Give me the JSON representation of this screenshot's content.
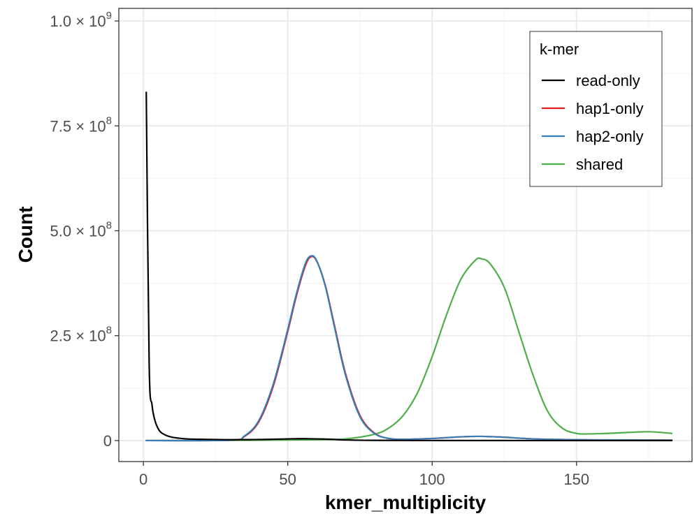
{
  "chart_data": {
    "type": "line",
    "xlabel": "kmer_multiplicity",
    "ylabel": "Count",
    "xlim": [
      -8.5,
      190
    ],
    "ylim": [
      -50000000.0,
      1030000000.0
    ],
    "x_ticks": [
      {
        "value": 0,
        "label": "0"
      },
      {
        "value": 50,
        "label": "50"
      },
      {
        "value": 100,
        "label": "100"
      },
      {
        "value": 150,
        "label": "150"
      }
    ],
    "y_ticks": [
      {
        "value": 0,
        "mantissa": "0",
        "exponent": ""
      },
      {
        "value": 250000000,
        "mantissa": "2.5 × 10",
        "exponent": "8"
      },
      {
        "value": 500000000,
        "mantissa": "5.0 × 10",
        "exponent": "8"
      },
      {
        "value": 750000000,
        "mantissa": "7.5 × 10",
        "exponent": "8"
      },
      {
        "value": 1000000000,
        "mantissa": "1.0 × 10",
        "exponent": "9"
      }
    ],
    "grid": true,
    "legend": {
      "title": "k-mer",
      "position": "top-right"
    },
    "series": [
      {
        "name": "read-only",
        "color": "#000000",
        "x": [
          1,
          2,
          3,
          4,
          5,
          6,
          8,
          10,
          12,
          15,
          20,
          25,
          30,
          40,
          50,
          55,
          60,
          65,
          70,
          80,
          100,
          120,
          140,
          160,
          183
        ],
        "y": [
          830000000,
          185000000,
          85000000,
          48000000,
          30000000,
          20000000,
          12000000,
          8000000,
          6000000,
          4000000,
          3000000,
          2500000,
          2000000,
          2500000,
          4000000,
          4500000,
          4000000,
          3000000,
          1500000,
          500000,
          200000,
          100000,
          50000,
          30000,
          20000
        ]
      },
      {
        "name": "hap1-only",
        "color": "#e41a1c",
        "x": [
          1,
          30,
          35,
          40,
          45,
          50,
          53,
          56,
          58,
          60,
          63,
          66,
          70,
          75,
          80,
          85,
          90,
          100,
          110,
          117,
          125,
          135,
          150,
          165,
          183
        ],
        "y": [
          0,
          1000000,
          10000000,
          45000000,
          130000000,
          260000000,
          345000000,
          415000000,
          438000000,
          428000000,
          370000000,
          280000000,
          160000000,
          60000000,
          18000000,
          5000000,
          3000000,
          5000000,
          9000000,
          10000000,
          8000000,
          4000000,
          2000000,
          1500000,
          1000000
        ]
      },
      {
        "name": "hap2-only",
        "color": "#377eb8",
        "x": [
          1,
          30,
          35,
          40,
          45,
          50,
          53,
          56,
          58,
          60,
          63,
          66,
          70,
          75,
          80,
          85,
          90,
          100,
          110,
          117,
          125,
          135,
          150,
          165,
          183
        ],
        "y": [
          0,
          1000000,
          11000000,
          48000000,
          135000000,
          265000000,
          350000000,
          420000000,
          440000000,
          429000000,
          368000000,
          276000000,
          156000000,
          57000000,
          17000000,
          5000000,
          3000000,
          5000000,
          9000000,
          10000000,
          8000000,
          4000000,
          2000000,
          1500000,
          1000000
        ]
      },
      {
        "name": "shared",
        "color": "#4daf4a",
        "x": [
          1,
          20,
          40,
          60,
          70,
          80,
          85,
          90,
          95,
          100,
          105,
          110,
          115,
          117,
          120,
          125,
          130,
          135,
          140,
          145,
          150,
          155,
          160,
          170,
          175,
          180,
          183
        ],
        "y": [
          0,
          0,
          1000000,
          2000000,
          4000000,
          15000000,
          30000000,
          60000000,
          115000000,
          200000000,
          300000000,
          385000000,
          430000000,
          433000000,
          422000000,
          365000000,
          260000000,
          155000000,
          70000000,
          30000000,
          17000000,
          16000000,
          17000000,
          20000000,
          21000000,
          19000000,
          17000000
        ]
      }
    ]
  }
}
